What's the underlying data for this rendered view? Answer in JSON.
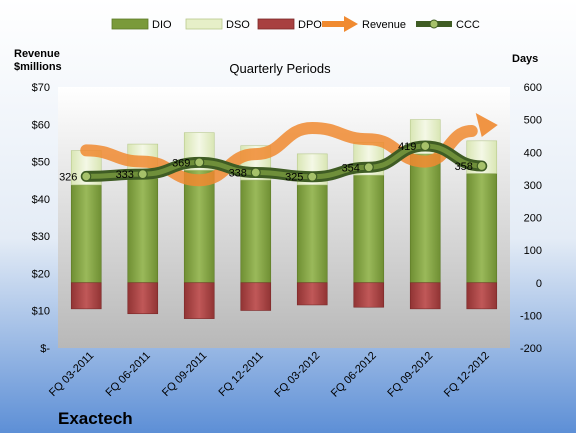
{
  "chart_data": {
    "type": "bar",
    "title": "Quarterly Periods",
    "company": "Exactech",
    "left_axis_label": "Revenue\n$millions",
    "right_axis_label": "Days",
    "left_axis": {
      "range": [
        0,
        70
      ],
      "ticks": [
        "$-",
        "$10",
        "$20",
        "$30",
        "$40",
        "$50",
        "$60",
        "$70"
      ]
    },
    "right_axis": {
      "range": [
        -200,
        600
      ],
      "ticks": [
        "-200",
        "-100",
        "0",
        "100",
        "200",
        "300",
        "400",
        "500",
        "600"
      ]
    },
    "categories": [
      "FQ 03-2011",
      "FQ 06-2011",
      "FQ 09-2011",
      "FQ 12-2011",
      "FQ 03-2012",
      "FQ 06-2012",
      "FQ 09-2012",
      "FQ 12-2012"
    ],
    "legend_position": "top",
    "series": [
      {
        "name": "DIO",
        "axis": "right",
        "kind": "stacked-bar",
        "color": "#7a9a3a",
        "values": [
          300,
          320,
          345,
          315,
          300,
          330,
          395,
          335
        ]
      },
      {
        "name": "DSO",
        "axis": "right",
        "kind": "stacked-bar",
        "color": "#e6efc8",
        "values": [
          105,
          105,
          115,
          105,
          95,
          100,
          105,
          100
        ]
      },
      {
        "name": "DPO",
        "axis": "right",
        "kind": "negative-bar",
        "color": "#a84040",
        "values": [
          -80,
          -95,
          -110,
          -85,
          -68,
          -75,
          -80,
          -80
        ]
      },
      {
        "name": "Revenue",
        "axis": "left",
        "kind": "arrow-line",
        "color": "#f08a30",
        "values": [
          53,
          50,
          45,
          52,
          59,
          56,
          50,
          59
        ]
      },
      {
        "name": "CCC",
        "axis": "right",
        "kind": "line",
        "color": "#4a6a2a",
        "values": [
          326,
          333,
          369,
          338,
          325,
          354,
          419,
          358
        ]
      }
    ],
    "data_labels": [
      "326",
      "333",
      "369",
      "338",
      "325",
      "354",
      "419",
      "358"
    ],
    "grid": false
  }
}
